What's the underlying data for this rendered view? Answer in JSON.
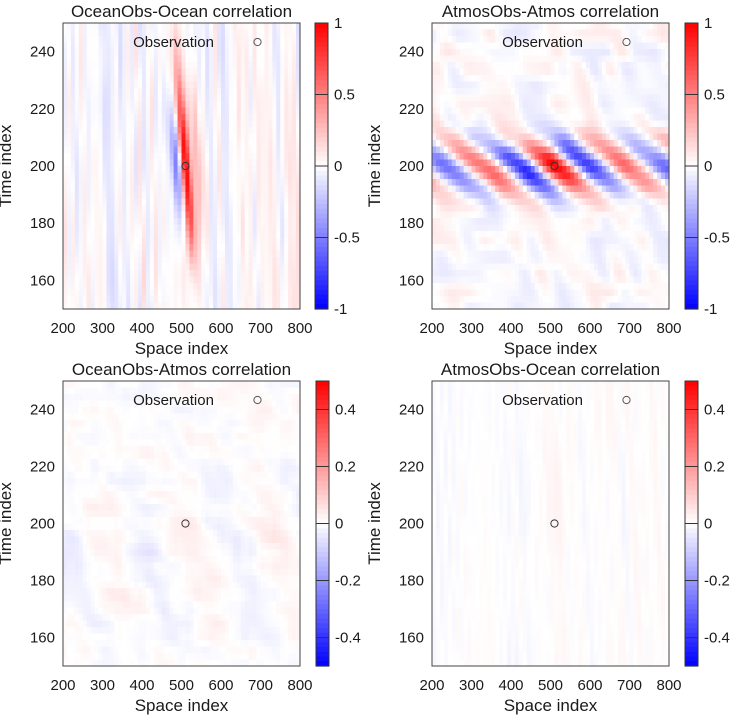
{
  "chart_data": [
    {
      "type": "heatmap",
      "title": "OceanObs-Ocean correlation",
      "xlabel": "Space index",
      "ylabel": "Time index",
      "xlim": [
        200,
        800
      ],
      "ylim": [
        150,
        250
      ],
      "xticks": [
        "200",
        "300",
        "400",
        "500",
        "600",
        "700",
        "800"
      ],
      "yticks": [
        "160",
        "180",
        "200",
        "220",
        "240"
      ],
      "colorbar": {
        "range": [
          -1,
          1
        ],
        "ticks": [
          "1",
          "0.5",
          "0",
          "-0.5",
          "-1"
        ]
      },
      "legend": {
        "label": "Observation",
        "position": "top"
      },
      "observation_point": {
        "x": 510,
        "y": 200
      },
      "pattern": "vertical-streaks",
      "peak_value": 1.0
    },
    {
      "type": "heatmap",
      "title": "AtmosObs-Atmos correlation",
      "xlabel": "Space index",
      "ylabel": "Time index",
      "xlim": [
        200,
        800
      ],
      "ylim": [
        150,
        250
      ],
      "xticks": [
        "200",
        "300",
        "400",
        "500",
        "600",
        "700",
        "800"
      ],
      "yticks": [
        "160",
        "180",
        "200",
        "220",
        "240"
      ],
      "colorbar": {
        "range": [
          -1,
          1
        ],
        "ticks": [
          "1",
          "0.5",
          "0",
          "-0.5",
          "-1"
        ]
      },
      "legend": {
        "label": "Observation",
        "position": "top"
      },
      "observation_point": {
        "x": 510,
        "y": 200
      },
      "pattern": "diagonal-wave",
      "peak_value": 1.0
    },
    {
      "type": "heatmap",
      "title": "OceanObs-Atmos correlation",
      "xlabel": "Space index",
      "ylabel": "Time index",
      "xlim": [
        200,
        800
      ],
      "ylim": [
        150,
        250
      ],
      "xticks": [
        "200",
        "300",
        "400",
        "500",
        "600",
        "700",
        "800"
      ],
      "yticks": [
        "160",
        "180",
        "200",
        "220",
        "240"
      ],
      "colorbar": {
        "range": [
          -0.5,
          0.5
        ],
        "ticks": [
          "0.4",
          "0.2",
          "0",
          "-0.2",
          "-0.4"
        ]
      },
      "legend": {
        "label": "Observation",
        "position": "top"
      },
      "observation_point": {
        "x": 510,
        "y": 200
      },
      "pattern": "diagonal-patches",
      "peak_value": 0.2
    },
    {
      "type": "heatmap",
      "title": "AtmosObs-Ocean correlation",
      "xlabel": "Space index",
      "ylabel": "Time index",
      "xlim": [
        200,
        800
      ],
      "ylim": [
        150,
        250
      ],
      "xticks": [
        "200",
        "300",
        "400",
        "500",
        "600",
        "700",
        "800"
      ],
      "yticks": [
        "160",
        "180",
        "200",
        "220",
        "240"
      ],
      "colorbar": {
        "range": [
          -0.5,
          0.5
        ],
        "ticks": [
          "0.4",
          "0.2",
          "0",
          "-0.2",
          "-0.4"
        ]
      },
      "legend": {
        "label": "Observation",
        "position": "top"
      },
      "observation_point": {
        "x": 510,
        "y": 200
      },
      "pattern": "vertical-streaks-weak",
      "peak_value": 0.15
    }
  ],
  "colors": {
    "positive": "#ff0000",
    "zero": "#ffffff",
    "negative": "#0000ff"
  }
}
